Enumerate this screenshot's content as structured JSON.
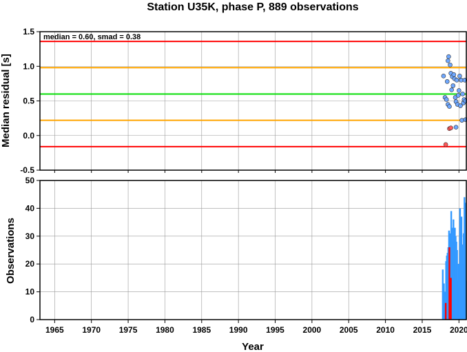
{
  "chart_data": [
    {
      "type": "scatter",
      "title": "Station U35K, phase P, 889 observations",
      "ylabel": "Median residual [s]",
      "annotation": "median = 0.60, smad = 0.38",
      "xlim": [
        1963,
        2021
      ],
      "ylim": [
        -0.5,
        1.5
      ],
      "x_ticks": [
        1965,
        1970,
        1975,
        1980,
        1985,
        1990,
        1995,
        2000,
        2005,
        2010,
        2015,
        2020
      ],
      "y_ticks": [
        "-0.5",
        "0.0",
        "0.5",
        "1.0",
        "1.5"
      ],
      "grid": true,
      "reference_lines": [
        {
          "name": "median",
          "value": 0.6,
          "color": "#00dd00"
        },
        {
          "name": "1 smad",
          "value": 0.98,
          "color": "#ffa500"
        },
        {
          "name": "1 smad",
          "value": 0.22,
          "color": "#ffa500"
        },
        {
          "name": "2 smad",
          "value": 1.36,
          "color": "#ff0000"
        },
        {
          "name": "2 smad",
          "value": -0.16,
          "color": "#ff0000"
        }
      ],
      "series": [
        {
          "color": "#6fa8ff",
          "points": [
            [
              2017.9,
              0.86
            ],
            [
              2018.1,
              0.55
            ],
            [
              2018.3,
              0.52
            ],
            [
              2018.4,
              0.78
            ],
            [
              2018.5,
              0.45
            ],
            [
              2018.5,
              1.08
            ],
            [
              2018.6,
              1.14
            ],
            [
              2018.7,
              0.42
            ],
            [
              2018.8,
              1.02
            ],
            [
              2018.9,
              0.9
            ],
            [
              2019.0,
              0.66
            ],
            [
              2019.1,
              0.85
            ],
            [
              2019.2,
              0.72
            ],
            [
              2019.3,
              0.88
            ],
            [
              2019.4,
              0.82
            ],
            [
              2019.5,
              0.55
            ],
            [
              2019.6,
              0.49
            ],
            [
              2019.6,
              0.12
            ],
            [
              2019.7,
              0.8
            ],
            [
              2019.8,
              0.45
            ],
            [
              2019.9,
              0.58
            ],
            [
              2020.0,
              0.65
            ],
            [
              2020.1,
              0.86
            ],
            [
              2020.2,
              0.43
            ],
            [
              2020.3,
              0.8
            ],
            [
              2020.4,
              0.22
            ],
            [
              2020.5,
              0.6
            ],
            [
              2020.6,
              0.47
            ],
            [
              2020.7,
              0.52
            ],
            [
              2020.8,
              0.8
            ],
            [
              2020.9,
              0.23
            ],
            [
              2020.9,
              0.5
            ]
          ]
        },
        {
          "color": "#ff5a5a",
          "points": [
            [
              2018.2,
              -0.13
            ],
            [
              2018.7,
              0.1
            ],
            [
              2018.9,
              0.11
            ]
          ]
        }
      ]
    },
    {
      "type": "bar",
      "xlabel": "Year",
      "ylabel": "Observations",
      "xlim": [
        1963,
        2021
      ],
      "ylim": [
        0,
        50
      ],
      "x_ticks": [
        "1965",
        "1970",
        "1975",
        "1980",
        "1985",
        "1990",
        "1995",
        "2000",
        "2005",
        "2010",
        "2015",
        "2020"
      ],
      "y_ticks": [
        "0",
        "10",
        "20",
        "30",
        "40",
        "50"
      ],
      "grid": true,
      "series": [
        {
          "color": "#3399ff",
          "x": [
            2017.8,
            2017.95,
            2018.05,
            2018.15,
            2018.25,
            2018.35,
            2018.45,
            2018.55,
            2018.65,
            2018.75,
            2018.85,
            2018.95,
            2019.05,
            2019.15,
            2019.25,
            2019.35,
            2019.45,
            2019.55,
            2019.65,
            2019.75,
            2019.85,
            2019.95,
            2020.05,
            2020.15,
            2020.25,
            2020.35,
            2020.45,
            2020.55,
            2020.65,
            2020.75,
            2020.85,
            2020.95
          ],
          "values": [
            18,
            13,
            6,
            10,
            21,
            23,
            24,
            26,
            32,
            31,
            21,
            39,
            33,
            28,
            36,
            32,
            33,
            30,
            28,
            25,
            14,
            20,
            12,
            40,
            33,
            37,
            27,
            20,
            31,
            44,
            42,
            14
          ]
        },
        {
          "color": "#ff0000",
          "x": [
            2018.2,
            2018.7,
            2018.9
          ],
          "values": [
            6,
            26,
            15
          ]
        }
      ]
    }
  ]
}
